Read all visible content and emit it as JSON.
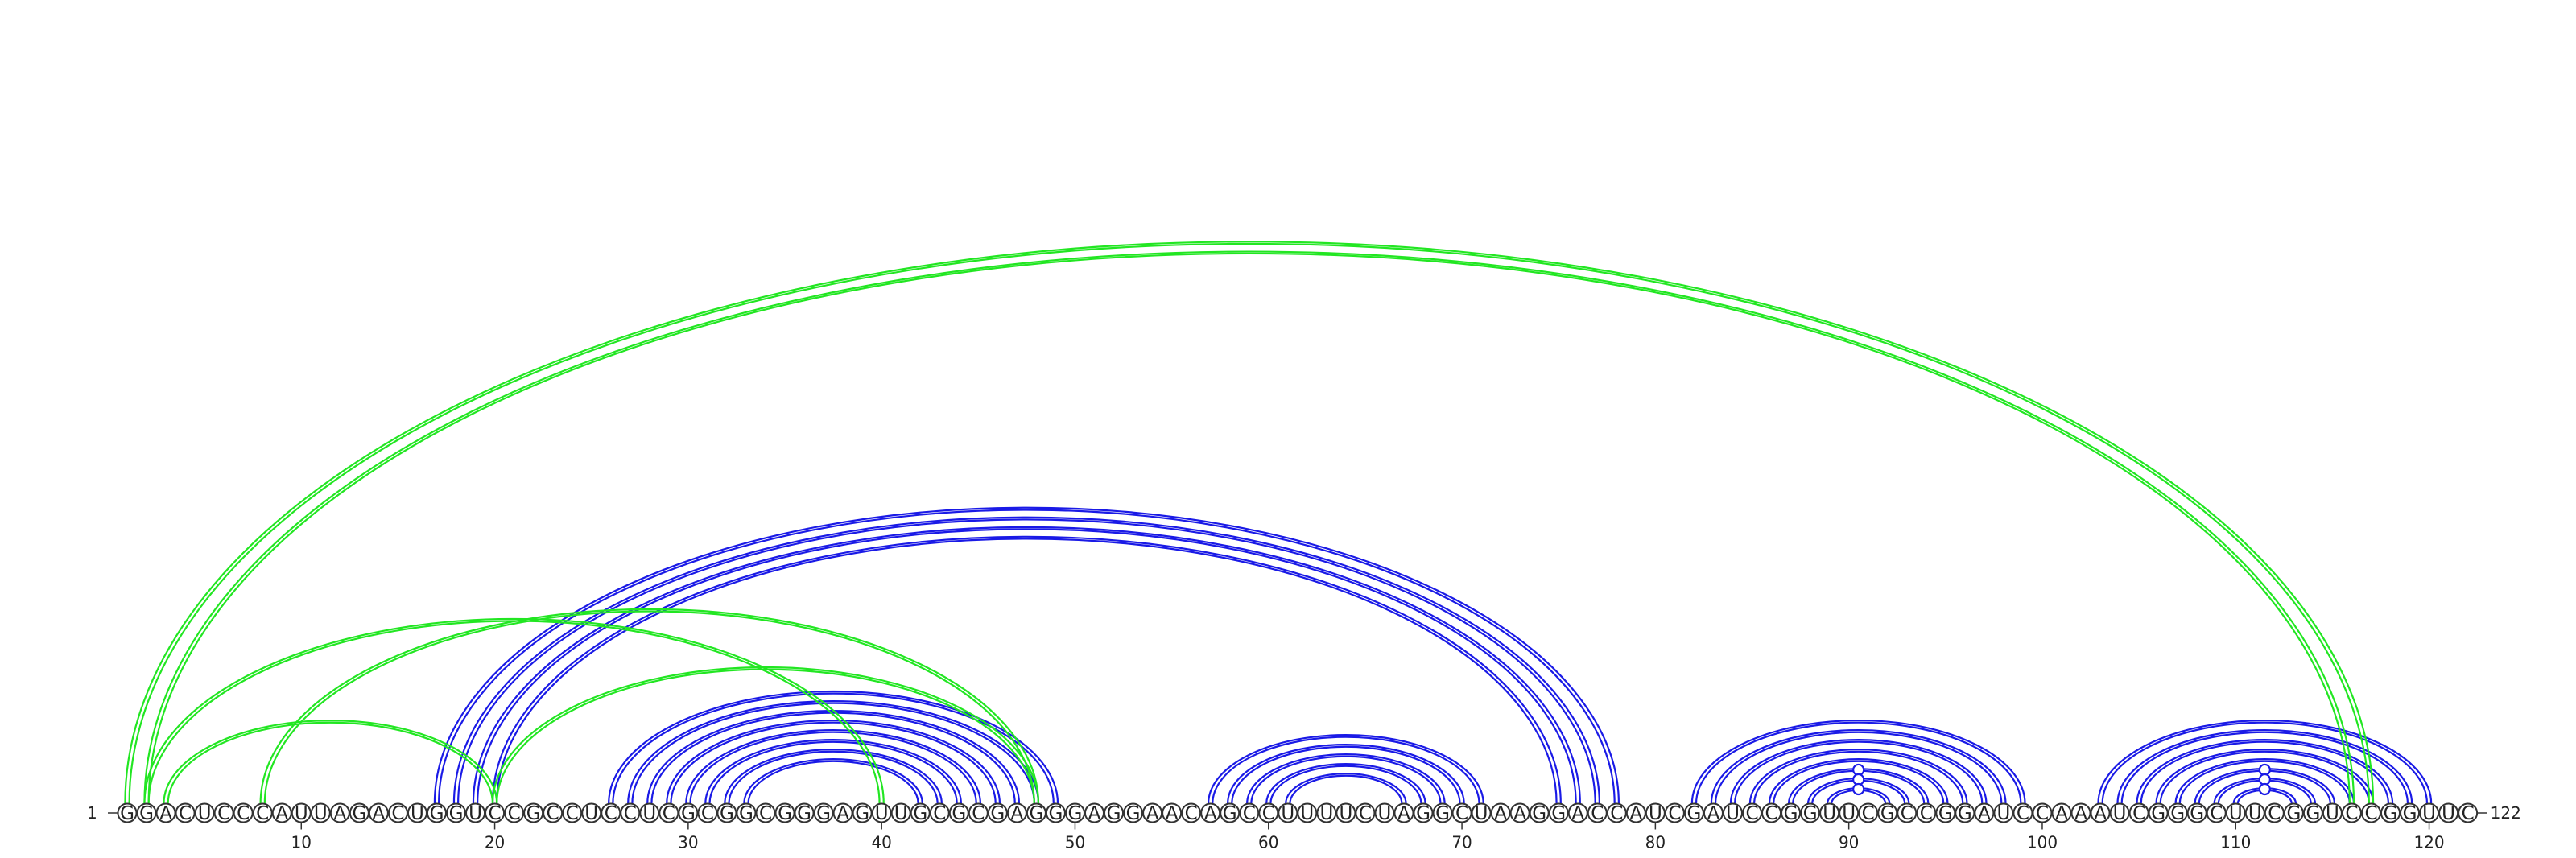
{
  "sequence": "GGACUCCCAUUAGACUGGUCCGCCUCCUCGCGGCGGGAGUUGCGCGAGGGAGGAACAGCCUUUUCUAGGCUAAGGACCAUCGAUCCGGUUCGCCGGAUCCAAAUCGGGCUUCGGUCCGGUUC",
  "length": 122,
  "start_label": "1",
  "end_label": "122",
  "position_ticks": [
    "10",
    "20",
    "30",
    "40",
    "50",
    "60",
    "70",
    "80",
    "90",
    "100",
    "110",
    "120"
  ],
  "colors": {
    "secondary": "#1a1ae6",
    "tertiary": "#22e622",
    "gu_marker": "#1a1ae6"
  },
  "arc_groups": [
    {
      "color": "secondary",
      "pairs": [
        [
          17,
          78
        ],
        [
          18,
          77
        ],
        [
          19,
          76
        ],
        [
          20,
          75
        ]
      ]
    },
    {
      "color": "secondary",
      "pairs": [
        [
          26,
          49
        ],
        [
          27,
          48
        ],
        [
          28,
          47
        ],
        [
          29,
          46
        ],
        [
          30,
          45
        ],
        [
          31,
          44
        ],
        [
          32,
          43
        ],
        [
          33,
          42
        ]
      ]
    },
    {
      "color": "secondary",
      "pairs": [
        [
          57,
          71
        ],
        [
          58,
          70
        ],
        [
          59,
          69
        ],
        [
          60,
          68
        ],
        [
          61,
          67
        ]
      ]
    },
    {
      "color": "secondary",
      "pairs": [
        [
          82,
          99
        ],
        [
          83,
          98
        ],
        [
          84,
          97
        ],
        [
          85,
          96
        ],
        [
          86,
          95
        ],
        [
          87,
          94
        ],
        [
          88,
          93
        ],
        [
          89,
          92
        ]
      ]
    },
    {
      "color": "secondary",
      "pairs": [
        [
          103,
          120
        ],
        [
          104,
          119
        ],
        [
          105,
          118
        ],
        [
          106,
          117
        ],
        [
          107,
          116
        ],
        [
          108,
          115
        ],
        [
          109,
          114
        ],
        [
          110,
          113
        ]
      ]
    },
    {
      "color": "tertiary",
      "pairs": [
        [
          1,
          117
        ],
        [
          2,
          116
        ]
      ]
    },
    {
      "color": "tertiary",
      "pairs": [
        [
          3,
          20
        ],
        [
          8,
          48
        ]
      ]
    },
    {
      "color": "tertiary",
      "pairs": [
        [
          2,
          40
        ],
        [
          20,
          48
        ]
      ]
    }
  ],
  "gu_markers": [
    91,
    112
  ]
}
